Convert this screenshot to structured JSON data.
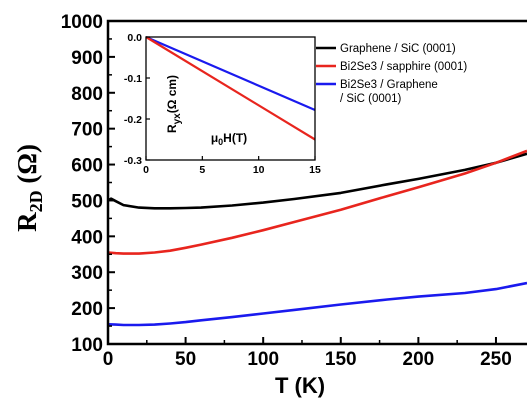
{
  "chart_data": {
    "type": "line",
    "xlabel": "T (K)",
    "ylabel": {
      "main": "R",
      "sub": "2D",
      "unit": " (Ω)"
    },
    "xlim": [
      0,
      270
    ],
    "ylim": [
      100,
      1000
    ],
    "xticks": [
      0,
      50,
      100,
      150,
      200,
      250
    ],
    "yticks": [
      100,
      200,
      300,
      400,
      500,
      600,
      700,
      800,
      900,
      1000
    ],
    "legend_position": "top-right",
    "series": [
      {
        "name": "Graphene / SiC (0001)",
        "color": "#000000",
        "x": [
          0,
          2,
          5,
          10,
          20,
          30,
          40,
          50,
          60,
          80,
          100,
          120,
          150,
          180,
          200,
          230,
          250,
          270
        ],
        "y": [
          500,
          505,
          498,
          487,
          480,
          478,
          478,
          479,
          480,
          486,
          494,
          504,
          521,
          545,
          560,
          585,
          605,
          630
        ]
      },
      {
        "name": "Bi2Se3 / sapphire (0001)",
        "name_lines": [
          "Bi2Se3 / sapphire (0001)"
        ],
        "color": "#e8251e",
        "x": [
          0,
          5,
          10,
          20,
          30,
          40,
          50,
          60,
          80,
          100,
          120,
          150,
          180,
          200,
          230,
          250,
          270
        ],
        "y": [
          355,
          353,
          352,
          352,
          355,
          360,
          368,
          377,
          396,
          417,
          440,
          474,
          512,
          537,
          575,
          605,
          638
        ]
      },
      {
        "name": "Bi2Se3 / Graphene / SiC (0001)",
        "name_lines": [
          "Bi2Se3 / Graphene",
          "/ SiC (0001)"
        ],
        "color": "#1a1aee",
        "x": [
          0,
          5,
          10,
          20,
          30,
          40,
          50,
          60,
          80,
          100,
          120,
          150,
          180,
          200,
          230,
          250,
          270
        ],
        "y": [
          155,
          154,
          153,
          153,
          154,
          157,
          161,
          166,
          175,
          185,
          195,
          210,
          224,
          232,
          242,
          253,
          270
        ]
      }
    ],
    "inset": {
      "type": "line",
      "xlabel": "μ0H(T)",
      "xlabel_parts": {
        "main": "μ",
        "sub": "0",
        "rest": "H(T)"
      },
      "ylabel_parts": {
        "main": "R",
        "sub": "yx",
        "rest": "(Ω cm)"
      },
      "xlim": [
        0,
        15
      ],
      "ylim": [
        -0.3,
        0
      ],
      "xticks": [
        0,
        5,
        10,
        15
      ],
      "yticks": [
        0.0,
        -0.1,
        -0.2,
        -0.3
      ],
      "ytick_labels": [
        "0.0",
        "-0.1",
        "-0.2",
        "-0.3"
      ],
      "series": [
        {
          "color": "#1a1aee",
          "x": [
            0,
            15
          ],
          "y": [
            0,
            -0.178
          ]
        },
        {
          "color": "#e8251e",
          "x": [
            0,
            15
          ],
          "y": [
            0,
            -0.25
          ]
        }
      ]
    }
  }
}
